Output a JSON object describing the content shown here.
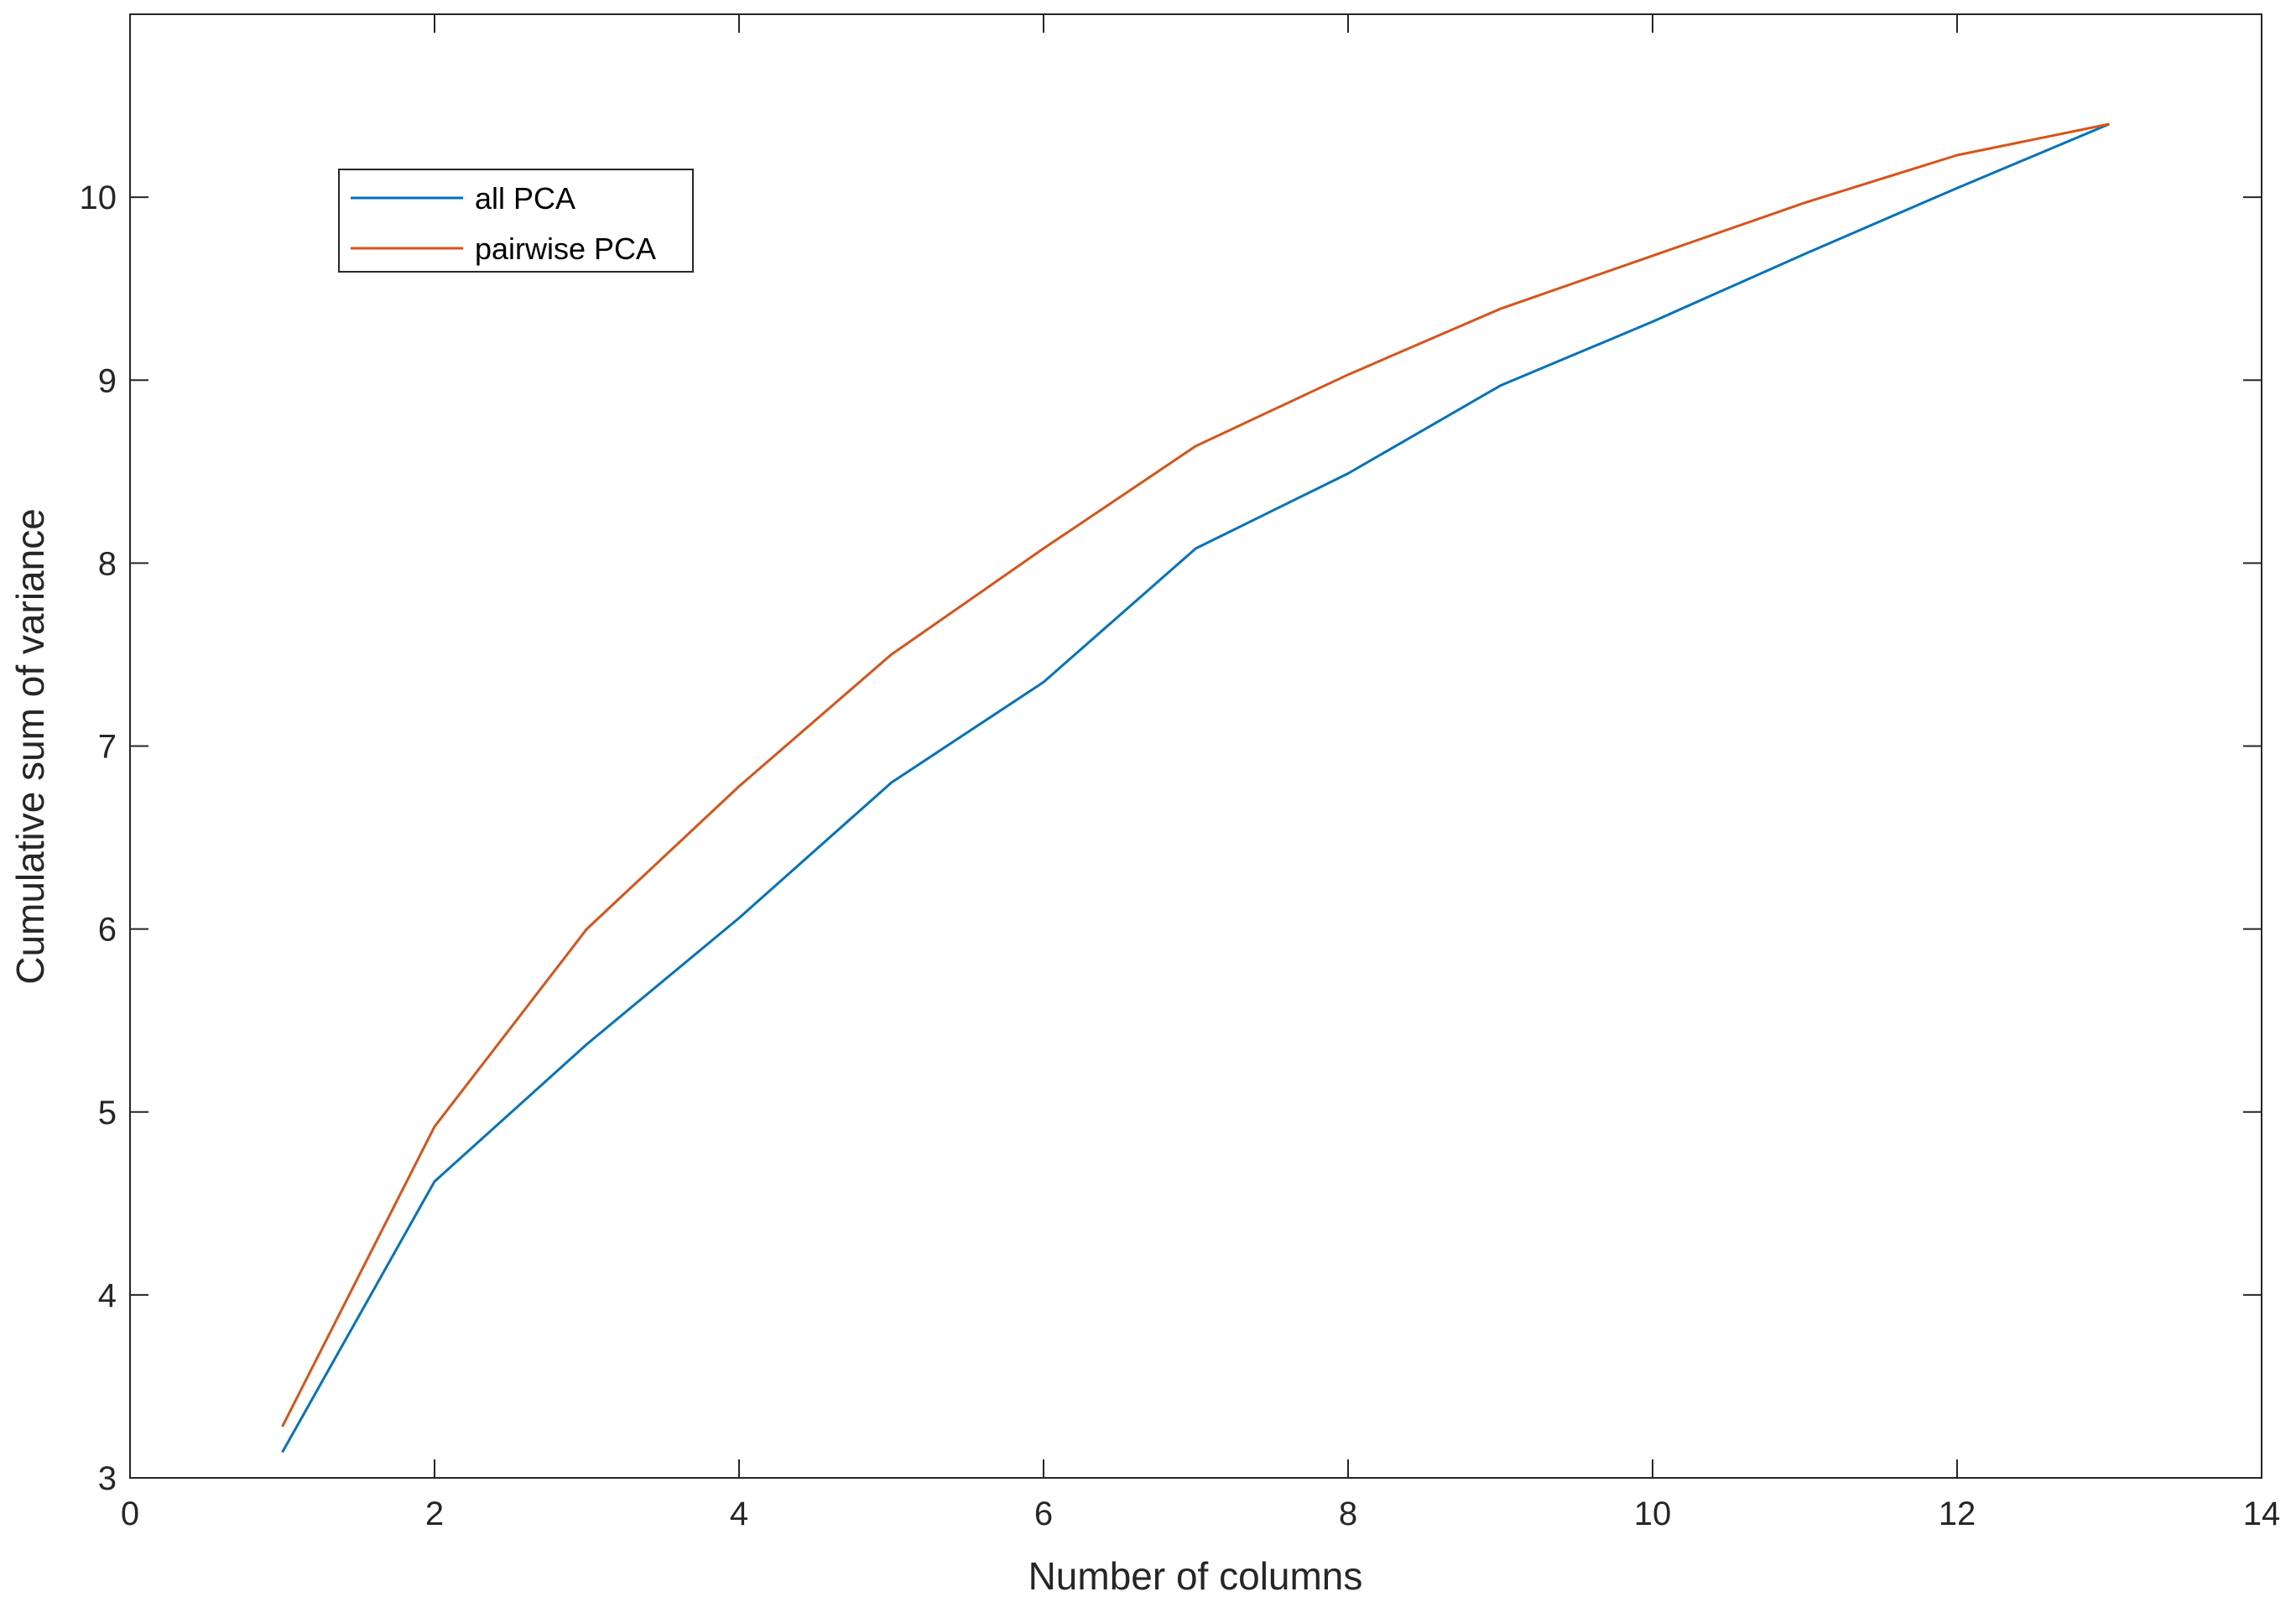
{
  "chart_data": {
    "type": "line",
    "title": "",
    "xlabel": "Number of columns",
    "ylabel": "Cumulative sum of variance",
    "xlim": [
      0,
      14
    ],
    "ylim": [
      3,
      11
    ],
    "xticks": [
      0,
      2,
      4,
      6,
      8,
      10,
      12,
      14
    ],
    "yticks": [
      3,
      4,
      5,
      6,
      7,
      8,
      9,
      10
    ],
    "grid": false,
    "box": true,
    "legend": {
      "placement": "top-left"
    },
    "x": [
      1,
      2,
      3,
      4,
      5,
      6,
      7,
      8,
      9,
      10,
      11,
      12,
      13
    ],
    "series": [
      {
        "name": "all PCA",
        "color": "#0072BD",
        "values": [
          3.14,
          4.62,
          5.37,
          6.06,
          6.8,
          7.35,
          8.08,
          8.49,
          8.97,
          9.32,
          9.69,
          10.05,
          10.4
        ]
      },
      {
        "name": "pairwise PCA",
        "color": "#D95319",
        "values": [
          3.28,
          4.92,
          6.0,
          6.78,
          7.5,
          8.08,
          8.64,
          9.03,
          9.39,
          9.68,
          9.97,
          10.23,
          10.4
        ]
      }
    ]
  }
}
